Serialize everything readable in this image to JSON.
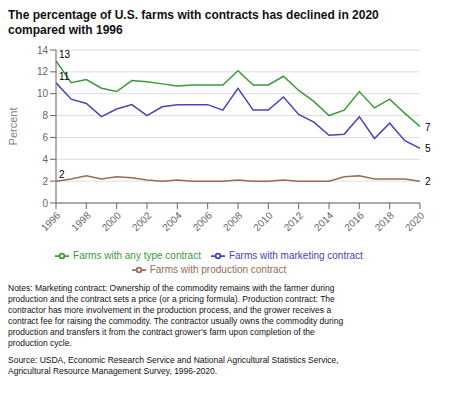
{
  "chart_data": {
    "type": "line",
    "title": "The percentage of U.S. farms with contracts has declined in 2020\ncompared with 1996",
    "y_label": "Percent",
    "x": [
      1996,
      1997,
      1998,
      1999,
      2000,
      2001,
      2002,
      2003,
      2004,
      2005,
      2006,
      2007,
      2008,
      2009,
      2010,
      2011,
      2012,
      2013,
      2014,
      2015,
      2016,
      2017,
      2018,
      2019,
      2020
    ],
    "series": [
      {
        "name": "Farms with any type contract",
        "color": "#3a9a3a",
        "values": [
          13,
          11.0,
          11.3,
          10.5,
          10.2,
          11.2,
          11.1,
          10.9,
          10.7,
          10.8,
          10.8,
          10.8,
          12.1,
          10.8,
          10.8,
          11.6,
          10.3,
          9.3,
          8.0,
          8.5,
          10.2,
          8.7,
          9.5,
          8.2,
          7.0
        ]
      },
      {
        "name": "Farms with marketing contract",
        "color": "#4444bb",
        "values": [
          11,
          9.5,
          9.1,
          7.9,
          8.6,
          9.0,
          8.0,
          8.8,
          9.0,
          9.0,
          9.0,
          8.5,
          10.5,
          8.5,
          8.5,
          9.7,
          8.1,
          7.4,
          6.2,
          6.3,
          7.9,
          5.9,
          7.3,
          5.7,
          5.0
        ]
      },
      {
        "name": "Farms with production contract",
        "color": "#9b6a50",
        "values": [
          2,
          2.2,
          2.5,
          2.2,
          2.4,
          2.3,
          2.1,
          2.0,
          2.1,
          2.0,
          2.0,
          2.0,
          2.1,
          2.0,
          2.0,
          2.1,
          2.0,
          2.0,
          2.0,
          2.4,
          2.5,
          2.2,
          2.2,
          2.2,
          2.0
        ]
      }
    ],
    "xlim": [
      1996,
      2020
    ],
    "xticks": [
      1996,
      1998,
      2000,
      2002,
      2004,
      2006,
      2008,
      2010,
      2012,
      2014,
      2016,
      2018,
      2020
    ],
    "ylim": [
      0,
      14
    ],
    "yticks": [
      0,
      2,
      4,
      6,
      8,
      10,
      12,
      14
    ],
    "grid": true,
    "legend": "bottom",
    "annotations": [
      {
        "text": "13",
        "x": 1996,
        "y": 13
      },
      {
        "text": "11",
        "x": 1996,
        "y": 11
      },
      {
        "text": "2",
        "x": 1996,
        "y": 2
      },
      {
        "text": "7",
        "x": 2020,
        "y": 7.0
      },
      {
        "text": "5",
        "x": 2020,
        "y": 5.0
      },
      {
        "text": "2",
        "x": 2020,
        "y": 2.0
      }
    ],
    "notes": "Notes: Marketing contract: Ownership of the commodity remains with the farmer during\nproduction and the contract sets a price (or a pricing formula). Production contract: The\ncontractor has more involvement in the production process, and the grower receives a\ncontract fee for raising the commodity. The contractor usually owns the commodity during\nproduction and transfers it from the contract grower’s farm upon completion of the\nproduction cycle.",
    "source": "Source: USDA, Economic Research Service and National Agricultural Statistics Service,\nAgricultural Resource Management Survey, 1996-2020."
  }
}
